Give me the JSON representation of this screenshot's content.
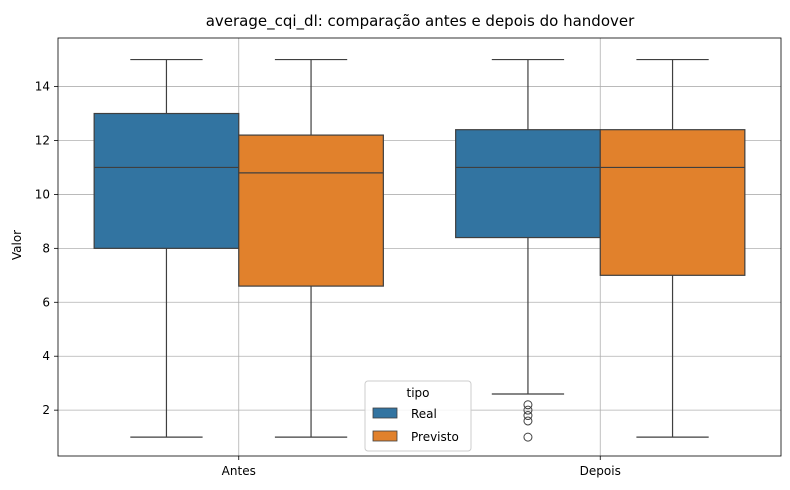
{
  "chart_data": {
    "type": "box",
    "title": "average_cqi_dl: comparação antes e depois do handover",
    "xlabel": "",
    "ylabel": "Valor",
    "categories": [
      "Antes",
      "Depois"
    ],
    "ylim": [
      0.3,
      15.8
    ],
    "yticks": [
      2,
      4,
      6,
      8,
      10,
      12,
      14
    ],
    "grid": true,
    "legend": {
      "title": "tipo",
      "placement": "lower-center"
    },
    "series": [
      {
        "name": "Real",
        "color": "#3274a1",
        "boxes": [
          {
            "category": "Antes",
            "whisker_low": 1,
            "q1": 8.0,
            "median": 11.0,
            "q3": 13.0,
            "whisker_high": 15,
            "outliers": []
          },
          {
            "category": "Depois",
            "whisker_low": 2.6,
            "q1": 8.4,
            "median": 11.0,
            "q3": 12.4,
            "whisker_high": 15,
            "outliers": [
              2.2,
              2.0,
              1.8,
              1.6,
              1.0
            ]
          }
        ]
      },
      {
        "name": "Previsto",
        "color": "#e1812c",
        "boxes": [
          {
            "category": "Antes",
            "whisker_low": 1,
            "q1": 6.6,
            "median": 10.8,
            "q3": 12.2,
            "whisker_high": 15,
            "outliers": []
          },
          {
            "category": "Depois",
            "whisker_low": 1,
            "q1": 7.0,
            "median": 11.0,
            "q3": 12.4,
            "whisker_high": 15,
            "outliers": []
          }
        ]
      }
    ]
  }
}
